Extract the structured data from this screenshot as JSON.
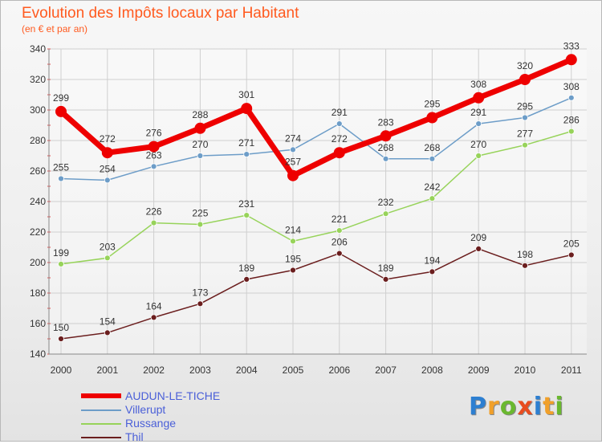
{
  "header": {
    "title": "Evolution des Impôts locaux par Habitant",
    "subtitle": "(en € et par an)"
  },
  "chart_data": {
    "type": "line",
    "title": "Evolution des Impôts locaux par Habitant",
    "subtitle": "(en € et par an)",
    "xlabel": "",
    "ylabel": "",
    "categories": [
      "2000",
      "2001",
      "2002",
      "2003",
      "2004",
      "2005",
      "2006",
      "2007",
      "2008",
      "2009",
      "2010",
      "2011"
    ],
    "ylim": [
      140,
      340
    ],
    "yticks": [
      140,
      160,
      180,
      200,
      220,
      240,
      260,
      280,
      300,
      320,
      340
    ],
    "grid": true,
    "legend_position": "bottom-left",
    "series": [
      {
        "name": "AUDUN-LE-TICHE",
        "color": "#ee0000",
        "values": [
          299,
          272,
          276,
          288,
          301,
          257,
          272,
          283,
          295,
          308,
          320,
          333
        ]
      },
      {
        "name": "Villerupt",
        "color": "#6d9dc8",
        "values": [
          255,
          254,
          263,
          270,
          271,
          274,
          291,
          268,
          268,
          291,
          295,
          308
        ]
      },
      {
        "name": "Russange",
        "color": "#97d35a",
        "values": [
          199,
          203,
          226,
          225,
          231,
          214,
          221,
          232,
          242,
          270,
          277,
          286
        ]
      },
      {
        "name": "Thil",
        "color": "#6b1e1e",
        "values": [
          150,
          154,
          164,
          173,
          189,
          195,
          206,
          189,
          194,
          209,
          198,
          205
        ]
      }
    ]
  },
  "legend": {
    "label_color": "#4a5fd8",
    "items": [
      "AUDUN-LE-TICHE",
      "Villerupt",
      "Russange",
      "Thil"
    ]
  },
  "logo": {
    "letters": [
      "P",
      "r",
      "o",
      "x",
      "i",
      "t",
      "i"
    ],
    "colors": [
      "#2d7fd1",
      "#f1a02a",
      "#6ab82f",
      "#e84c1f",
      "#2d7fd1",
      "#f1a02a",
      "#6ab82f"
    ]
  }
}
